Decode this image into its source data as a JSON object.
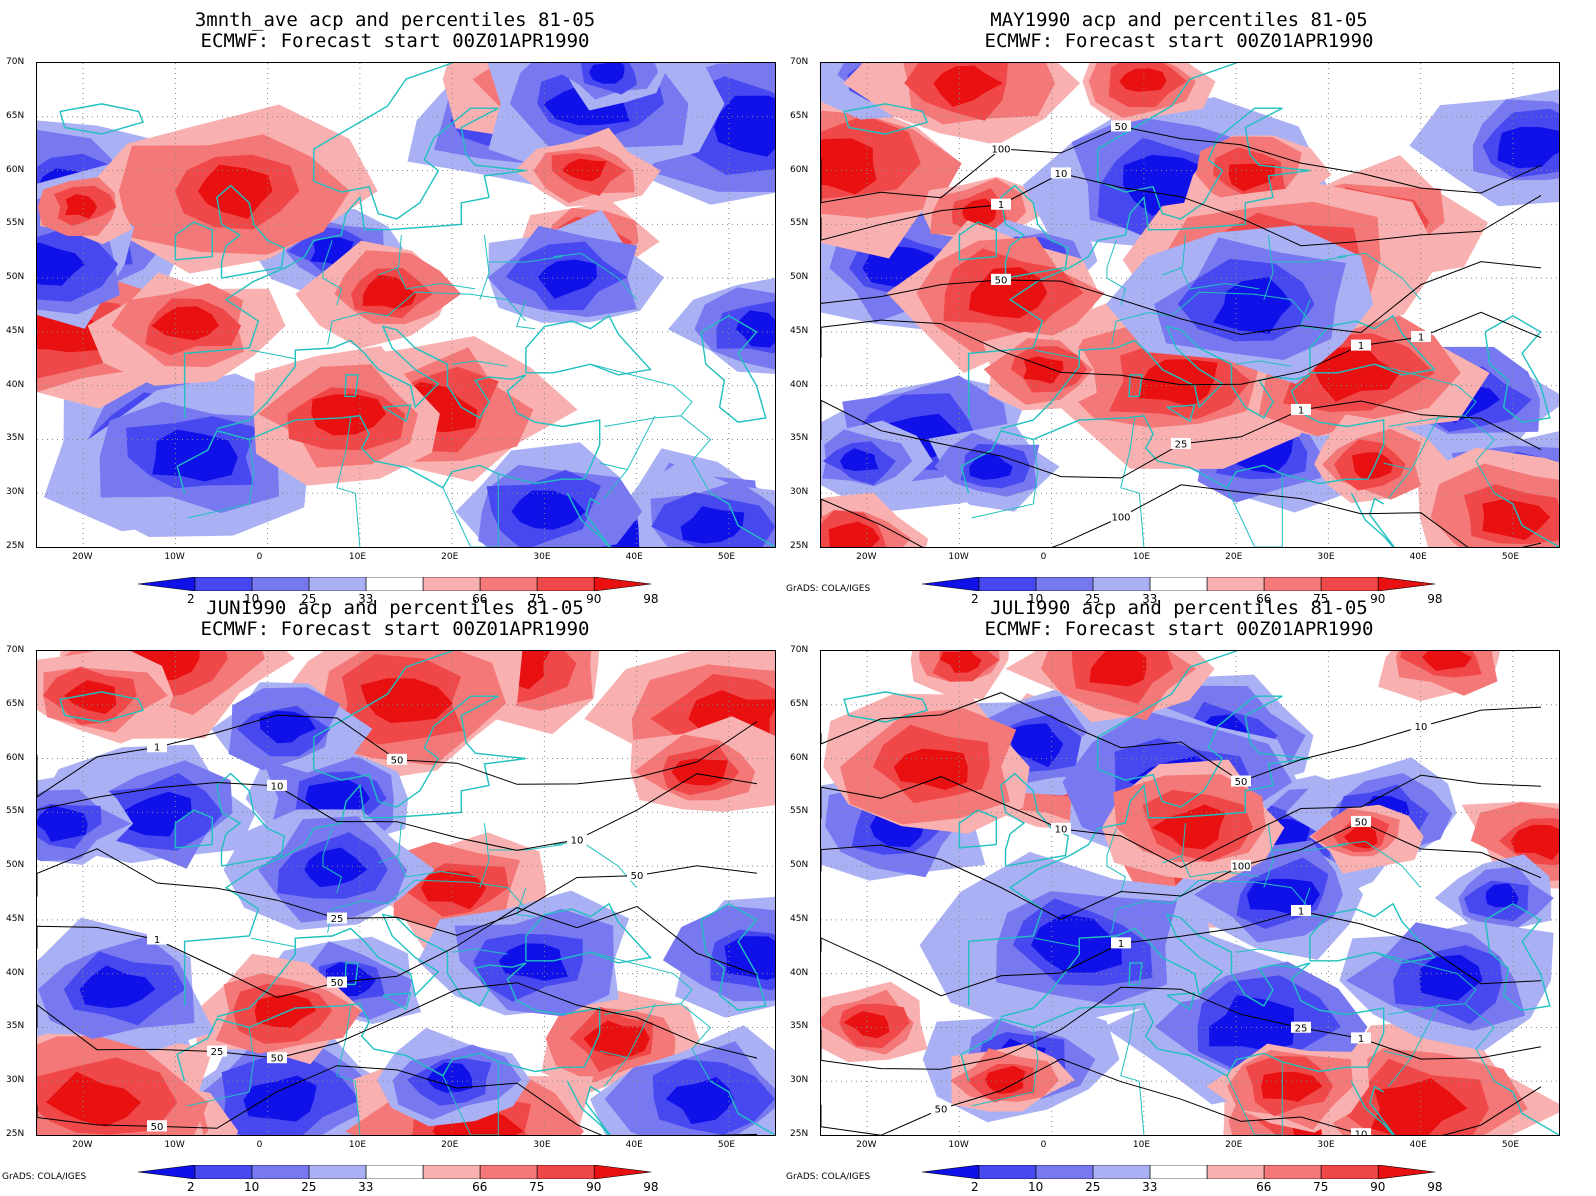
{
  "panels": [
    {
      "title1": "3mnth_ave acp and percentiles 81-05",
      "title2": "ECMWF: Forecast start 00Z01APR1990",
      "credit": "",
      "contours": false
    },
    {
      "title1": "MAY1990 acp and percentiles 81-05",
      "title2": "ECMWF: Forecast start 00Z01APR1990",
      "credit": "GrADS: COLA/IGES",
      "contours": true
    },
    {
      "title1": "JUN1990 acp and percentiles 81-05",
      "title2": "ECMWF: Forecast start 00Z01APR1990",
      "credit": "GrADS: COLA/IGES",
      "contours": true
    },
    {
      "title1": "JUL1990 acp and percentiles 81-05",
      "title2": "ECMWF: Forecast start 00Z01APR1990",
      "credit": "GrADS: COLA/IGES",
      "contours": true
    }
  ],
  "axes": {
    "lat_labels": [
      "70N",
      "65N",
      "60N",
      "55N",
      "50N",
      "45N",
      "40N",
      "35N",
      "30N",
      "25N"
    ],
    "lon_labels": [
      "20W",
      "10W",
      "0",
      "10E",
      "20E",
      "30E",
      "40E",
      "50E"
    ]
  },
  "colorbar": {
    "labels": [
      "2",
      "10",
      "25",
      "33",
      "66",
      "75",
      "90",
      "98"
    ],
    "colors": [
      "#1010e8",
      "#4848f0",
      "#7878f0",
      "#aab0f4",
      "#ffffff",
      "#f8b0b0",
      "#f47878",
      "#f04848",
      "#e81010"
    ]
  },
  "contour_labels": [
    "1",
    "10",
    "25",
    "50",
    "100"
  ],
  "colors": {
    "coast": "#20c0c0",
    "grid": "#888888"
  }
}
